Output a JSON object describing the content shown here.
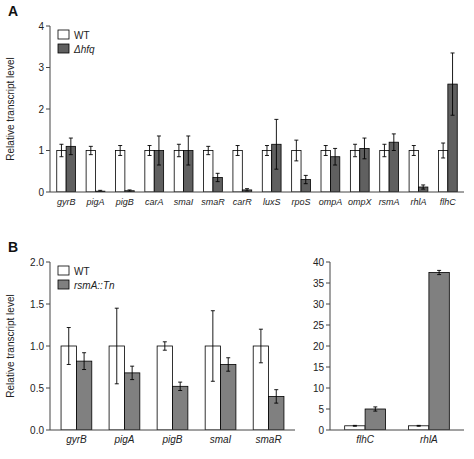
{
  "chart_data": [
    {
      "type": "bar",
      "title": "A",
      "categories": [
        "gyrB",
        "pigA",
        "pigB",
        "carA",
        "smaI",
        "smaR",
        "carR",
        "luxS",
        "rpoS",
        "ompA",
        "ompX",
        "rsmA",
        "rhlA",
        "flhC"
      ],
      "series": [
        {
          "name": "WT",
          "color": "white",
          "values": [
            1.0,
            1.0,
            1.0,
            1.0,
            1.0,
            1.0,
            1.0,
            1.0,
            1.0,
            1.0,
            1.0,
            1.0,
            1.0,
            1.0
          ],
          "errors": [
            0.15,
            0.1,
            0.12,
            0.12,
            0.15,
            0.1,
            0.12,
            0.12,
            0.25,
            0.12,
            0.15,
            0.15,
            0.12,
            0.18
          ]
        },
        {
          "name": "Δhfq",
          "color": "#606060",
          "values": [
            1.1,
            0.02,
            0.03,
            1.0,
            1.0,
            0.35,
            0.05,
            1.15,
            0.3,
            0.85,
            1.05,
            1.2,
            0.12,
            2.6
          ],
          "errors": [
            0.2,
            0.02,
            0.02,
            0.35,
            0.35,
            0.1,
            0.03,
            0.6,
            0.1,
            0.2,
            0.25,
            0.2,
            0.05,
            0.75
          ]
        }
      ],
      "y_label": "Relative transcript level",
      "ylim": [
        0,
        4
      ],
      "yticks": [
        0,
        1,
        2,
        3,
        4
      ],
      "grid": false,
      "legend": "upper left"
    },
    {
      "type": "bar",
      "title": "B",
      "categories": [
        "gyrB",
        "pigA",
        "pigB",
        "smaI",
        "smaR"
      ],
      "series": [
        {
          "name": "WT",
          "color": "white",
          "values": [
            1.0,
            1.0,
            1.0,
            1.0,
            1.0
          ],
          "errors": [
            0.22,
            0.45,
            0.05,
            0.42,
            0.2
          ]
        },
        {
          "name": "rsmA::Tn",
          "color": "#808080",
          "values": [
            0.82,
            0.68,
            0.52,
            0.78,
            0.4
          ],
          "errors": [
            0.1,
            0.08,
            0.05,
            0.08,
            0.08
          ]
        }
      ],
      "y_label": "Relative transcript level",
      "ylim": [
        0,
        2
      ],
      "yticks": [
        {
          "value": 0,
          "label": "0.0"
        },
        0.5,
        {
          "value": 1.0,
          "label": "1.0"
        },
        1.5,
        {
          "value": 2.0,
          "label": "2.0"
        }
      ],
      "grid": false,
      "legend": "upper left"
    },
    {
      "type": "bar",
      "categories": [
        "flhC",
        "rhlA"
      ],
      "series": [
        {
          "color": "white",
          "values": [
            1.0,
            1.0
          ],
          "errors": [
            0.1,
            0.1
          ]
        },
        {
          "color": "#808080",
          "values": [
            5.0,
            37.5
          ],
          "errors": [
            0.5,
            0.5
          ]
        }
      ],
      "ylim": [
        0,
        40
      ],
      "yticks": [
        0,
        5,
        10,
        15,
        20,
        25,
        30,
        35,
        40
      ],
      "grid": false
    }
  ]
}
